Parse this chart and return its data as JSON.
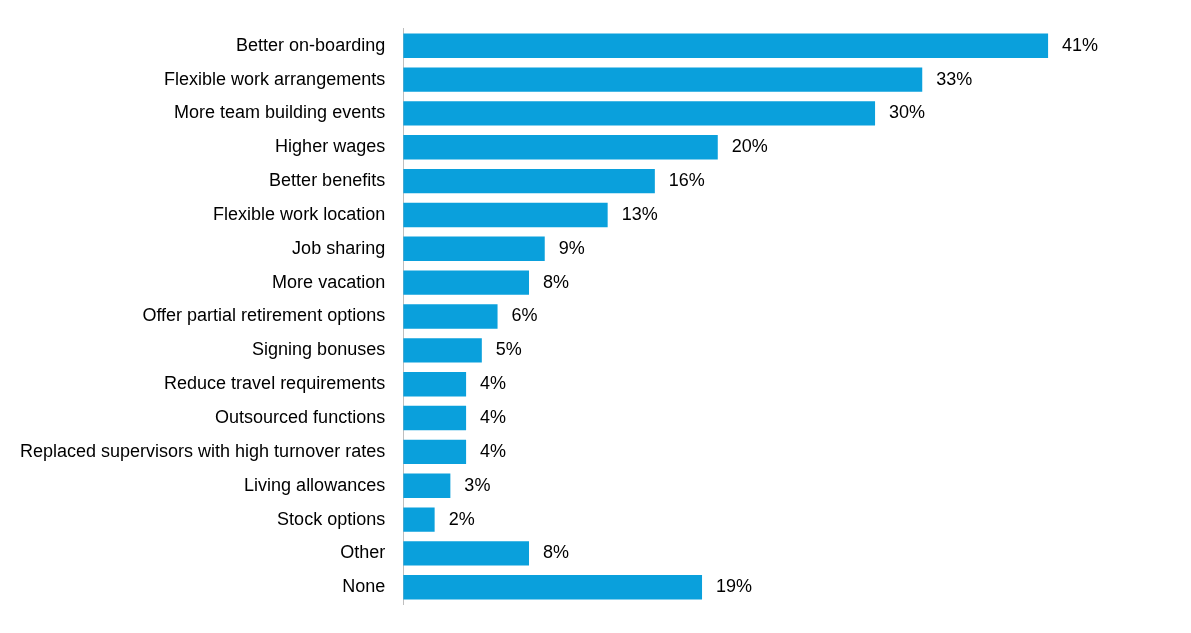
{
  "chart_data": {
    "type": "bar",
    "orientation": "horizontal",
    "categories": [
      "Better on-boarding",
      "Flexible work arrangements",
      "More team building events",
      "Higher wages",
      "Better benefits",
      "Flexible work location",
      "Job sharing",
      "More vacation",
      "Offer partial retirement options",
      "Signing bonuses",
      "Reduce travel requirements",
      "Outsourced functions",
      "Replaced supervisors with high turnover rates",
      "Living allowances",
      "Stock options",
      "Other",
      "None"
    ],
    "values": [
      41,
      33,
      30,
      20,
      16,
      13,
      9,
      8,
      6,
      5,
      4,
      4,
      4,
      3,
      2,
      8,
      19
    ],
    "value_labels": [
      "41%",
      "33%",
      "30%",
      "20%",
      "16%",
      "13%",
      "9%",
      "8%",
      "6%",
      "5%",
      "4%",
      "4%",
      "4%",
      "3%",
      "2%",
      "8%",
      "19%"
    ],
    "color": "#0aa0dc",
    "legend": false
  }
}
